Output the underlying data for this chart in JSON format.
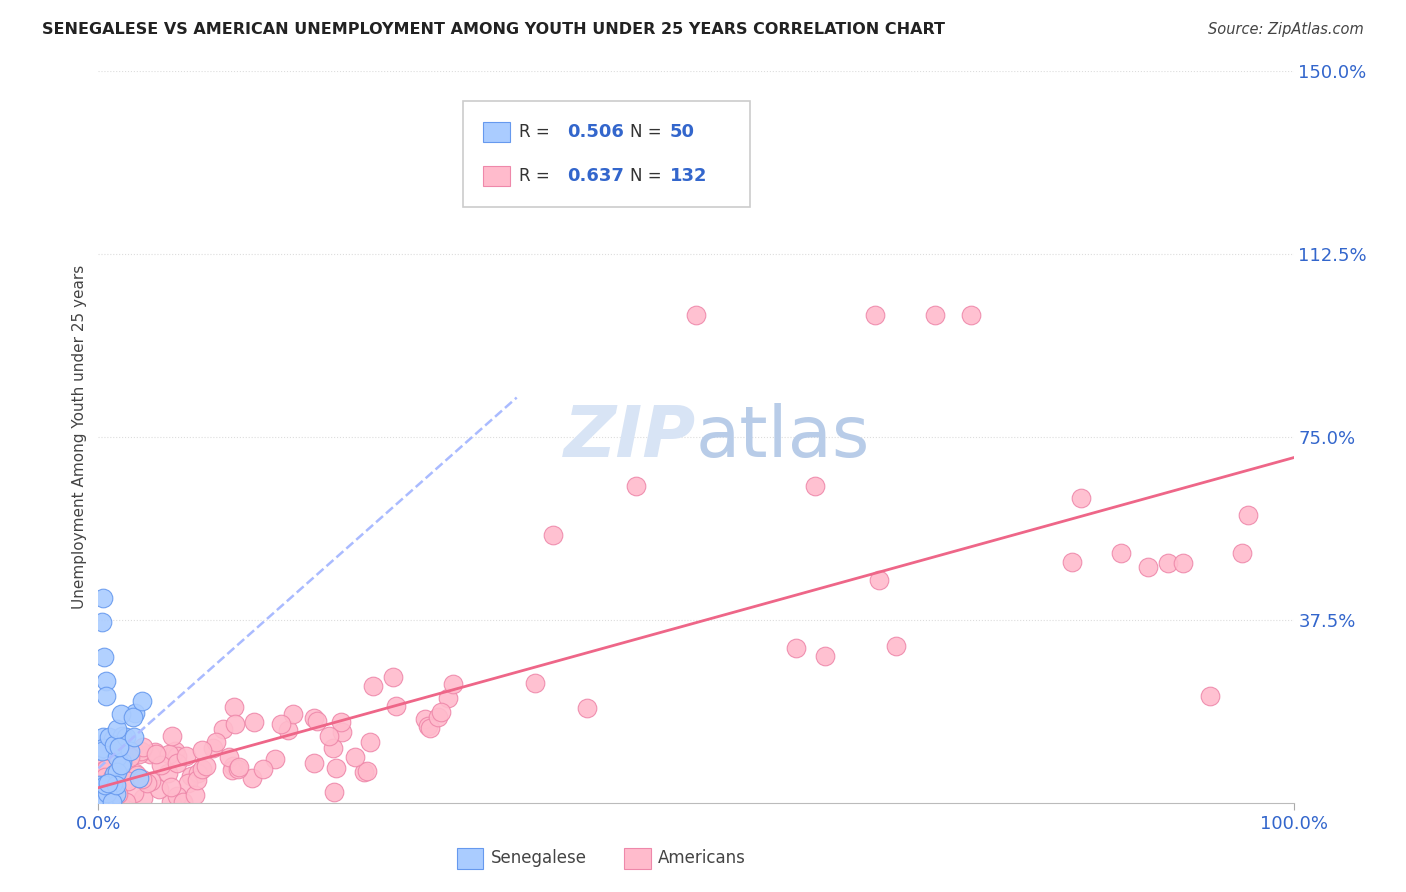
{
  "title": "SENEGALESE VS AMERICAN UNEMPLOYMENT AMONG YOUTH UNDER 25 YEARS CORRELATION CHART",
  "source": "Source: ZipAtlas.com",
  "ylabel": "Unemployment Among Youth under 25 years",
  "bg_color": "#ffffff",
  "senegalese_color": "#aaccff",
  "senegalese_edge": "#6699ee",
  "americans_color": "#ffbbcc",
  "americans_edge": "#ee88aa",
  "trend_blue_color": "#aabbff",
  "trend_pink_color": "#ee6688",
  "legend_text_color": "#3366cc",
  "grid_color": "#dddddd",
  "xlim": [
    0,
    1.0
  ],
  "ylim": [
    0,
    1.5
  ],
  "sen_slope": 4.5,
  "sen_intercept": 0.005,
  "ame_slope": 0.55,
  "ame_intercept": 0.03
}
